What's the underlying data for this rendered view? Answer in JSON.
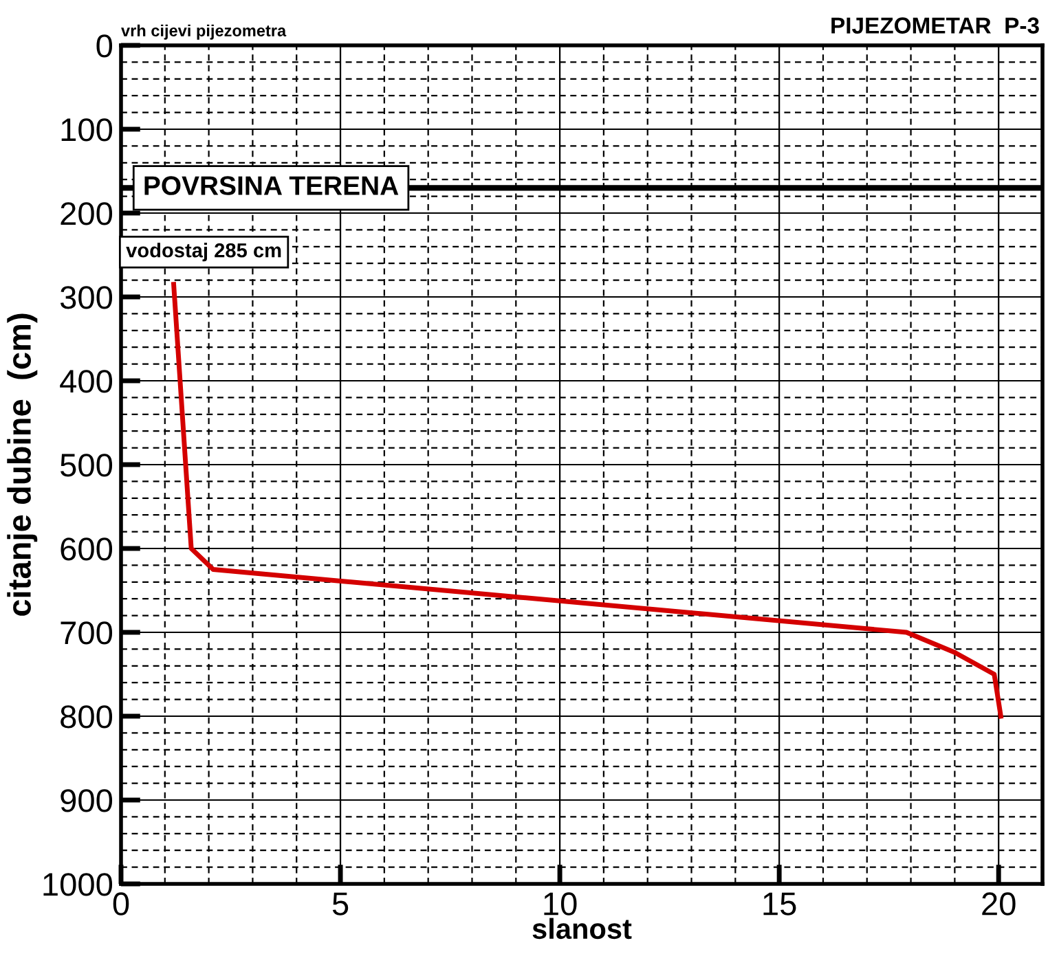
{
  "chart_data": {
    "type": "line",
    "title": "PIJEZOMETAR  P-3",
    "xlabel": "slanost",
    "ylabel": "citanje dubine  (cm)",
    "x": [
      1.2,
      1.6,
      2.1,
      17.9,
      19.0,
      19.9,
      20.05
    ],
    "series": [
      {
        "color": "#d40000",
        "values": [
          285,
          600,
          625,
          700,
          724,
          750,
          800
        ]
      }
    ],
    "xlim": [
      0,
      21
    ],
    "ylim": [
      1000,
      0
    ],
    "xticks": [
      0,
      {
        "value": 1,
        "label": null
      },
      {
        "value": 2,
        "label": null
      },
      {
        "value": 3,
        "label": null
      },
      {
        "value": 4,
        "label": null
      },
      5,
      {
        "value": 6,
        "label": null
      },
      {
        "value": 7,
        "label": null
      },
      {
        "value": 8,
        "label": null
      },
      {
        "value": 9,
        "label": null
      },
      10,
      {
        "value": 11,
        "label": null
      },
      {
        "value": 12,
        "label": null
      },
      {
        "value": 13,
        "label": null
      },
      {
        "value": 14,
        "label": null
      },
      15,
      {
        "value": 16,
        "label": null
      },
      {
        "value": 17,
        "label": null
      },
      {
        "value": 18,
        "label": null
      },
      {
        "value": 19,
        "label": null
      },
      20
    ],
    "yticks": [
      0,
      {
        "value": 20,
        "label": null
      },
      {
        "value": 40,
        "label": null
      },
      {
        "value": 60,
        "label": null
      },
      {
        "value": 80,
        "label": null
      },
      100,
      {
        "value": 120,
        "label": null
      },
      {
        "value": 140,
        "label": null
      },
      {
        "value": 160,
        "label": null
      },
      {
        "value": 180,
        "label": null
      },
      200,
      {
        "value": 220,
        "label": null
      },
      {
        "value": 240,
        "label": null
      },
      {
        "value": 260,
        "label": null
      },
      {
        "value": 280,
        "label": null
      },
      300,
      {
        "value": 320,
        "label": null
      },
      {
        "value": 340,
        "label": null
      },
      {
        "value": 360,
        "label": null
      },
      {
        "value": 380,
        "label": null
      },
      400,
      {
        "value": 420,
        "label": null
      },
      {
        "value": 440,
        "label": null
      },
      {
        "value": 460,
        "label": null
      },
      {
        "value": 480,
        "label": null
      },
      500,
      {
        "value": 520,
        "label": null
      },
      {
        "value": 540,
        "label": null
      },
      {
        "value": 560,
        "label": null
      },
      {
        "value": 580,
        "label": null
      },
      600,
      {
        "value": 620,
        "label": null
      },
      {
        "value": 640,
        "label": null
      },
      {
        "value": 660,
        "label": null
      },
      {
        "value": 680,
        "label": null
      },
      700,
      {
        "value": 720,
        "label": null
      },
      {
        "value": 740,
        "label": null
      },
      {
        "value": 760,
        "label": null
      },
      {
        "value": 780,
        "label": null
      },
      800,
      {
        "value": 820,
        "label": null
      },
      {
        "value": 840,
        "label": null
      },
      {
        "value": 860,
        "label": null
      },
      {
        "value": 880,
        "label": null
      },
      900,
      {
        "value": 920,
        "label": null
      },
      {
        "value": 940,
        "label": null
      },
      {
        "value": 960,
        "label": null
      },
      {
        "value": 980,
        "label": null
      },
      1000
    ],
    "grid": true,
    "marker": "none",
    "line_style": "solid",
    "ref_lines": [
      {
        "axis": "y",
        "value": 170,
        "label": "POVRSINA TERENA",
        "color": "#000000"
      }
    ],
    "annotations": [
      "vrh cijevi pijezometra",
      {
        "text": "vodostaj 285 cm",
        "x": 1.2,
        "y": 285
      }
    ]
  }
}
